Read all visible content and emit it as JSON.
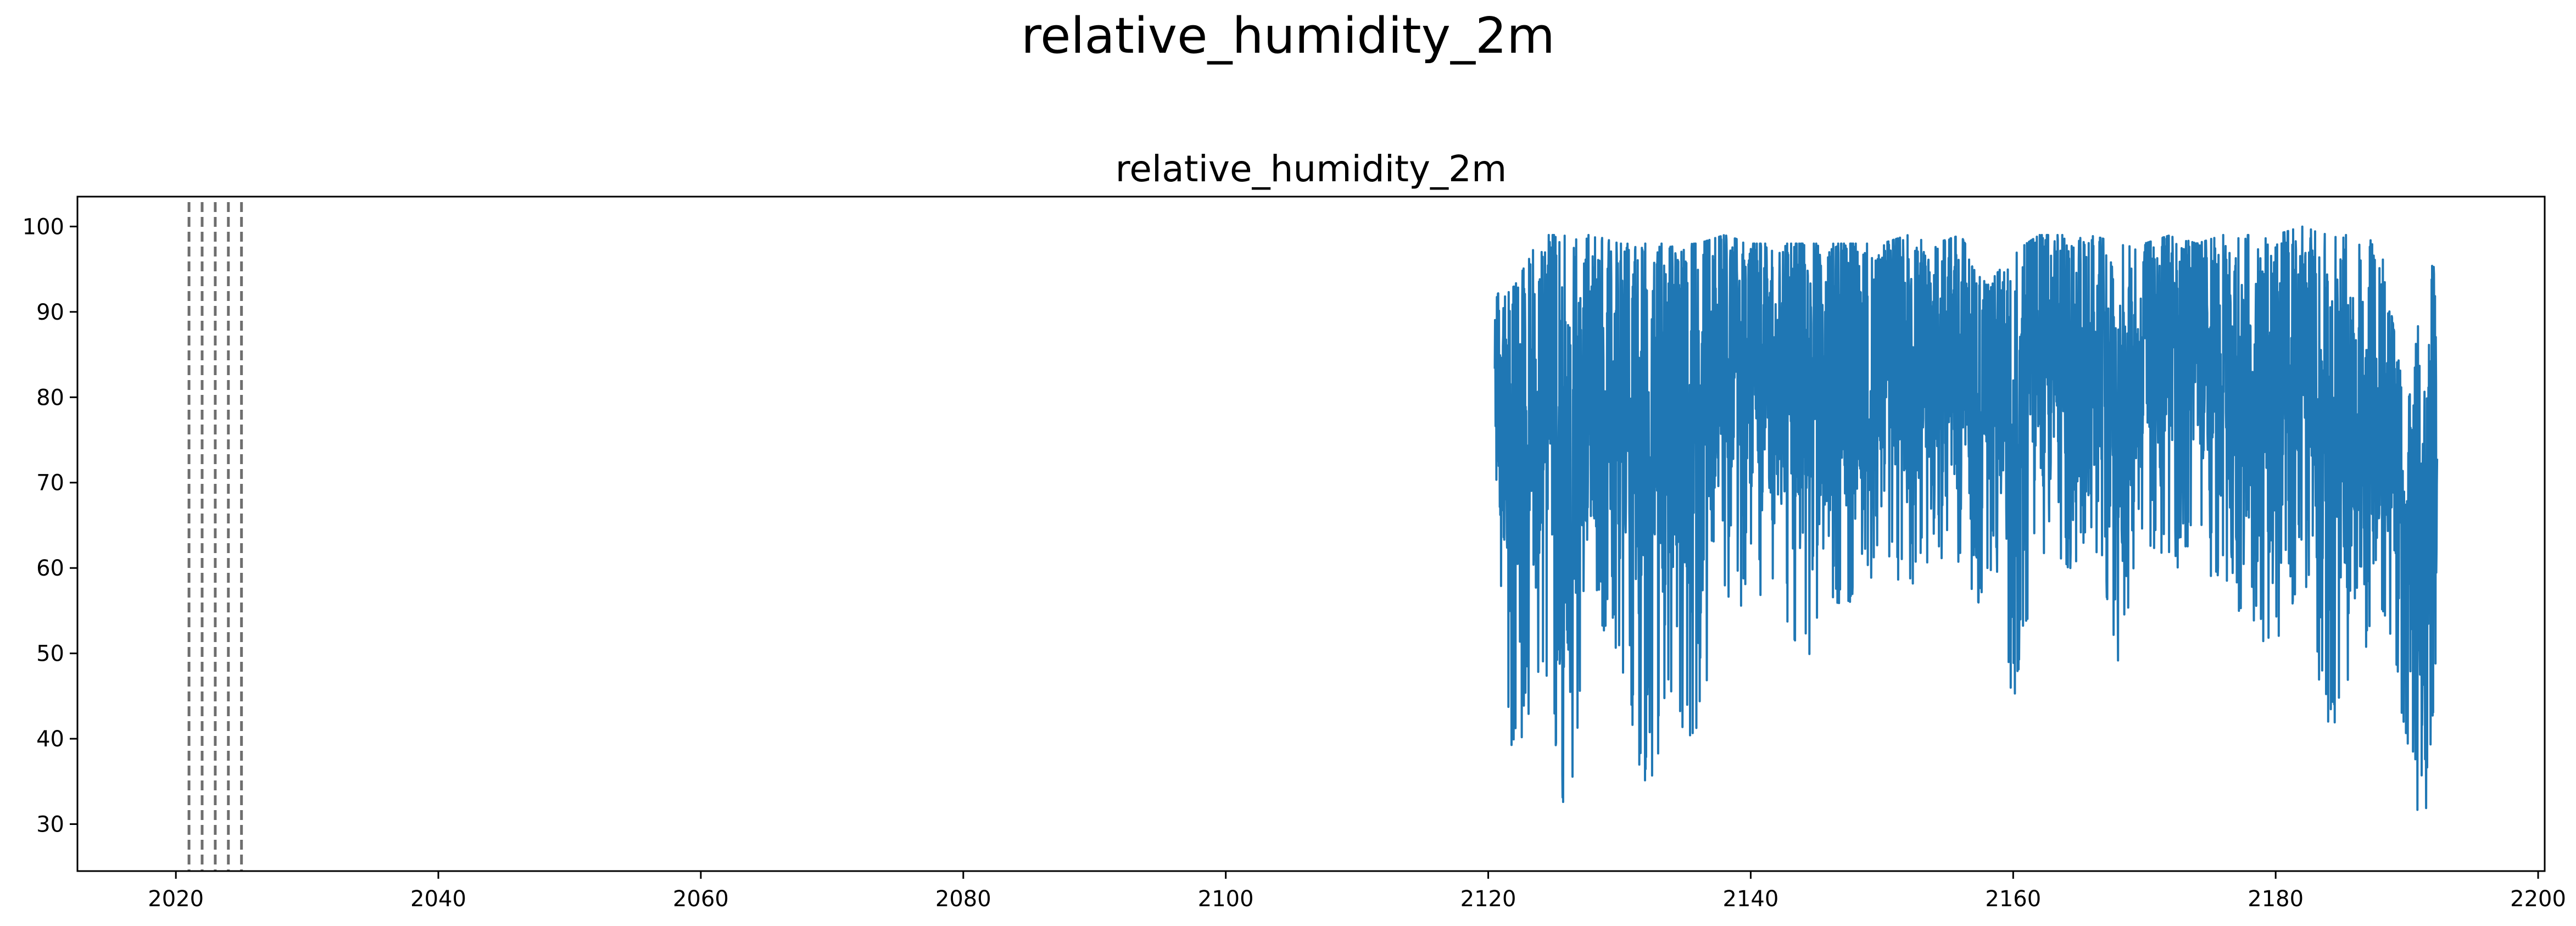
{
  "figure": {
    "suptitle": "relative_humidity_2m"
  },
  "colors": {
    "series": "#1f77b4",
    "vlines": "#6e6e6e",
    "axes": "#000000"
  },
  "chart_data": {
    "type": "line",
    "title": "relative_humidity_2m",
    "xlabel": "",
    "ylabel": "",
    "xlim": [
      2012.5,
      2200.5
    ],
    "ylim": [
      24.5,
      103.5
    ],
    "xticks": [
      2020,
      2040,
      2060,
      2080,
      2100,
      2120,
      2140,
      2160,
      2180,
      2200
    ],
    "yticks": [
      30,
      40,
      50,
      60,
      70,
      80,
      90,
      100
    ],
    "grid": false,
    "legend": "none",
    "vertical_dashed_lines": [
      2021,
      2022,
      2023,
      2024,
      2025
    ],
    "series": [
      {
        "x_range": [
          2120.5,
          2192.3
        ],
        "approx_envelope": [
          {
            "x": 2120.5,
            "min": 47,
            "max": 92
          },
          {
            "x": 2122,
            "min": 37,
            "max": 93
          },
          {
            "x": 2124,
            "min": 45,
            "max": 99
          },
          {
            "x": 2126,
            "min": 30,
            "max": 99
          },
          {
            "x": 2128,
            "min": 55,
            "max": 99
          },
          {
            "x": 2130,
            "min": 49,
            "max": 98
          },
          {
            "x": 2132,
            "min": 32,
            "max": 98
          },
          {
            "x": 2134,
            "min": 45,
            "max": 98
          },
          {
            "x": 2136,
            "min": 35,
            "max": 98
          },
          {
            "x": 2138,
            "min": 55,
            "max": 99
          },
          {
            "x": 2140,
            "min": 55,
            "max": 98
          },
          {
            "x": 2142,
            "min": 58,
            "max": 98
          },
          {
            "x": 2144,
            "min": 46,
            "max": 98
          },
          {
            "x": 2146,
            "min": 55,
            "max": 98
          },
          {
            "x": 2148,
            "min": 55,
            "max": 98
          },
          {
            "x": 2150,
            "min": 60,
            "max": 98
          },
          {
            "x": 2152,
            "min": 55,
            "max": 99
          },
          {
            "x": 2154,
            "min": 60,
            "max": 98
          },
          {
            "x": 2156,
            "min": 58,
            "max": 99
          },
          {
            "x": 2158,
            "min": 55,
            "max": 93
          },
          {
            "x": 2160,
            "min": 43,
            "max": 97
          },
          {
            "x": 2162,
            "min": 62,
            "max": 99
          },
          {
            "x": 2164,
            "min": 60,
            "max": 99
          },
          {
            "x": 2166,
            "min": 60,
            "max": 99
          },
          {
            "x": 2168,
            "min": 49,
            "max": 98
          },
          {
            "x": 2170,
            "min": 60,
            "max": 98
          },
          {
            "x": 2172,
            "min": 60,
            "max": 99
          },
          {
            "x": 2174,
            "min": 60,
            "max": 98
          },
          {
            "x": 2176,
            "min": 58,
            "max": 99
          },
          {
            "x": 2178,
            "min": 50,
            "max": 99
          },
          {
            "x": 2180,
            "min": 50,
            "max": 99
          },
          {
            "x": 2182,
            "min": 58,
            "max": 100
          },
          {
            "x": 2184,
            "min": 38,
            "max": 99
          },
          {
            "x": 2186,
            "min": 45,
            "max": 99
          },
          {
            "x": 2188,
            "min": 55,
            "max": 98
          },
          {
            "x": 2190,
            "min": 35,
            "max": 78
          },
          {
            "x": 2191.5,
            "min": 28,
            "max": 100
          },
          {
            "x": 2192.3,
            "min": 50,
            "max": 93
          }
        ]
      }
    ]
  }
}
